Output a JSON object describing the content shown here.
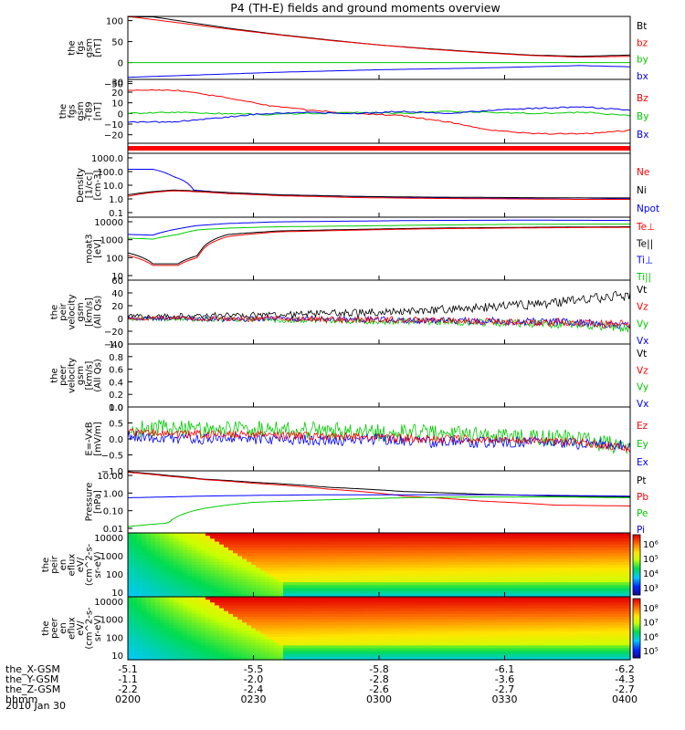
{
  "title": "P4 (TH-E) fields and ground moments overview",
  "date_label": "2010 Jan 30",
  "orbit": {
    "rows": [
      {
        "label": "the_X-GSM",
        "values": [
          "-5.1",
          "-5.5",
          "-5.8",
          "-6.1",
          "-6.2"
        ]
      },
      {
        "label": "the_Y-GSM",
        "values": [
          "-1.1",
          "-2.0",
          "-2.8",
          "-3.6",
          "-4.3"
        ]
      },
      {
        "label": "the_Z-GSM",
        "values": [
          "-2.2",
          "-2.4",
          "-2.6",
          "-2.7",
          "-2.7"
        ]
      },
      {
        "label": "hhmm",
        "values": [
          "0200",
          "0230",
          "0300",
          "0330",
          "0400"
        ]
      }
    ]
  },
  "colors": {
    "black": "#000000",
    "red": "#ff0000",
    "green": "#00cc00",
    "blue": "#0000ff"
  },
  "chart_data": [
    {
      "type": "line",
      "ylabel": [
        "the",
        "fgs",
        "gsm",
        "[nT]"
      ],
      "ylim": [
        -40,
        110
      ],
      "yticks": [
        "100",
        "50",
        "0",
        "−50"
      ],
      "legend": [
        {
          "text": "Bt",
          "color": "#000000"
        },
        {
          "text": "bz",
          "color": "#ff0000"
        },
        {
          "text": "by",
          "color": "#00cc00"
        },
        {
          "text": "bx",
          "color": "#0000ff"
        }
      ],
      "series": [
        {
          "color": "#000000",
          "values": [
            118,
            100,
            82,
            67,
            54,
            42,
            33,
            25,
            18,
            15,
            18
          ]
        },
        {
          "color": "#ff0000",
          "values": [
            110,
            95,
            80,
            66,
            53,
            42,
            32,
            24,
            17,
            13,
            15
          ]
        },
        {
          "color": "#00cc00",
          "values": [
            0,
            0,
            0,
            0,
            0,
            0,
            0,
            0,
            0,
            0,
            0
          ]
        },
        {
          "color": "#0000ff",
          "values": [
            -35,
            -31,
            -27,
            -23,
            -20,
            -17,
            -15,
            -13,
            -10,
            -7,
            -10
          ]
        }
      ]
    },
    {
      "type": "line",
      "ylabel": [
        "the",
        "fgs",
        "gsm",
        "-T89",
        "[nT]"
      ],
      "ylim": [
        -28,
        32
      ],
      "yticks": [
        "30",
        "20",
        "10",
        "0",
        "−10",
        "−20"
      ],
      "legend": [
        {
          "text": "Bz",
          "color": "#ff0000"
        },
        {
          "text": "By",
          "color": "#00cc00"
        },
        {
          "text": "Bx",
          "color": "#0000ff"
        }
      ],
      "series": [
        {
          "color": "#ff0000",
          "values": [
            22,
            22,
            16,
            8,
            3,
            0,
            -2,
            -8,
            -16,
            -19,
            -19,
            -16
          ]
        },
        {
          "color": "#00cc00",
          "values": [
            0,
            1,
            0,
            -1,
            0,
            1,
            0,
            2,
            1,
            0,
            1,
            -2
          ]
        },
        {
          "color": "#0000ff",
          "values": [
            -8,
            -8,
            -4,
            0,
            1,
            0,
            2,
            0,
            3,
            5,
            6,
            3
          ]
        }
      ]
    },
    {
      "type": "line",
      "ylabel": [
        "Density",
        "[1/cc]",
        "[cm-3]"
      ],
      "ylim": [
        0.1,
        1000
      ],
      "scale": "log",
      "yticks": [
        "1000.0",
        "100.0",
        "10.0",
        "1.0",
        "0.1"
      ],
      "legend": [
        {
          "text": "Ne",
          "color": "#ff0000"
        },
        {
          "text": "Ni",
          "color": "#000000"
        },
        {
          "text": "Npot",
          "color": "#0000ff"
        }
      ],
      "x": [
        0,
        0.05,
        0.09,
        0.13,
        0.2,
        0.3,
        0.45,
        0.6,
        0.75,
        0.9,
        1
      ],
      "series": [
        {
          "color": "#0000ff",
          "values": [
            100,
            100,
            35,
            5,
            3,
            2.5,
            2,
            1.6,
            1.5,
            1.6,
            1.4
          ]
        },
        {
          "color": "#000000",
          "values": [
            2.5,
            4,
            5,
            4.5,
            3.5,
            2.5,
            2,
            1.8,
            1.7,
            1.6,
            1.6
          ]
        },
        {
          "color": "#ff0000",
          "values": [
            2,
            3.5,
            4.5,
            4,
            3,
            2.2,
            1.7,
            1.5,
            1.4,
            1.3,
            1.3
          ]
        }
      ]
    },
    {
      "type": "line",
      "ylabel": [
        "moat3",
        "[eV]"
      ],
      "ylim": [
        10,
        10000
      ],
      "scale": "log",
      "yticks": [
        "10000",
        "1000",
        "100",
        "10"
      ],
      "legend": [
        {
          "text": "Te⊥",
          "color": "#ff0000"
        },
        {
          "text": "Te||",
          "color": "#000000"
        },
        {
          "text": "Ti⊥",
          "color": "#0000ff"
        },
        {
          "text": "Ti||",
          "color": "#00cc00"
        }
      ],
      "x": [
        0,
        0.05,
        0.1,
        0.14,
        0.2,
        0.3,
        0.45,
        0.6,
        0.8,
        1
      ],
      "series": [
        {
          "color": "#0000ff",
          "values": [
            1500,
            1400,
            2800,
            4000,
            5000,
            6000,
            6500,
            7000,
            7200,
            7000
          ]
        },
        {
          "color": "#00cc00",
          "values": [
            1000,
            900,
            1500,
            2500,
            3000,
            3500,
            3800,
            4200,
            4600,
            4700
          ]
        },
        {
          "color": "#000000",
          "values": [
            200,
            60,
            60,
            150,
            1500,
            2200,
            2600,
            3000,
            3300,
            3500
          ]
        },
        {
          "color": "#ff0000",
          "values": [
            150,
            50,
            50,
            120,
            1200,
            2000,
            2400,
            2800,
            3100,
            3300
          ]
        }
      ]
    },
    {
      "type": "line",
      "ylabel": [
        "the",
        "peir",
        "velocity",
        "gsm",
        "[km/s]",
        "(All Qs)"
      ],
      "ylim": [
        -40,
        60
      ],
      "yticks": [
        "60",
        "40",
        "20",
        "0",
        "−20",
        "−40"
      ],
      "legend": [
        {
          "text": "Vt",
          "color": "#000000"
        },
        {
          "text": "Vz",
          "color": "#ff0000"
        },
        {
          "text": "Vy",
          "color": "#00cc00"
        },
        {
          "text": "Vx",
          "color": "#0000ff"
        }
      ],
      "series": [
        {
          "color": "#000000",
          "values": [
            3,
            4,
            5,
            6,
            8,
            10,
            13,
            17,
            22,
            28,
            38
          ]
        },
        {
          "color": "#00cc00",
          "values": [
            0,
            -1,
            -2,
            -2,
            -3,
            -4,
            -5,
            -6,
            -8,
            -10,
            -15
          ]
        },
        {
          "color": "#0000ff",
          "values": [
            0,
            0,
            -1,
            0,
            -1,
            -2,
            -3,
            -4,
            -5,
            -6,
            -12
          ]
        },
        {
          "color": "#ff0000",
          "values": [
            0,
            0,
            -1,
            -1,
            -2,
            -2,
            -3,
            -4,
            -5,
            -7,
            -10
          ]
        }
      ]
    },
    {
      "type": "line",
      "ylabel": [
        "the",
        "peer",
        "velocity",
        "gsm",
        "[km/s]",
        "(All Qs)"
      ],
      "ylim": [
        0,
        1
      ],
      "yticks": [
        "1.0",
        "0.8",
        "0.6",
        "0.4",
        "0.2",
        "0.0"
      ],
      "legend": [
        {
          "text": "Vt",
          "color": "#000000"
        },
        {
          "text": "Vz",
          "color": "#ff0000"
        },
        {
          "text": "Vy",
          "color": "#00cc00"
        },
        {
          "text": "Vx",
          "color": "#0000ff"
        }
      ],
      "series": []
    },
    {
      "type": "line",
      "ylabel": [
        "E=-VxB",
        "[mV/m]"
      ],
      "ylim": [
        -1,
        1
      ],
      "yticks": [
        "1.0",
        "0.5",
        "0.0",
        "−0.5",
        "−1.0"
      ],
      "legend": [
        {
          "text": "Ez",
          "color": "#ff0000"
        },
        {
          "text": "Ey",
          "color": "#00cc00"
        },
        {
          "text": "Ex",
          "color": "#0000ff"
        }
      ],
      "series": [
        {
          "color": "#00cc00",
          "values": [
            0.3,
            0.35,
            0.3,
            0.3,
            0.25,
            0.2,
            0.2,
            0.1,
            0.05,
            0,
            -0.3
          ]
        },
        {
          "color": "#0000ff",
          "values": [
            0.1,
            0,
            0,
            0,
            -0.05,
            0,
            -0.1,
            -0.1,
            -0.1,
            -0.15,
            -0.2
          ]
        },
        {
          "color": "#ff0000",
          "values": [
            0.2,
            0.15,
            0.15,
            0.1,
            0.1,
            0.05,
            0,
            0,
            -0.05,
            -0.1,
            -0.3
          ]
        }
      ]
    },
    {
      "type": "line",
      "ylabel": [
        "Pressure",
        "[nPa]"
      ],
      "ylim": [
        0.01,
        10
      ],
      "scale": "log",
      "yticks": [
        "10.00",
        "1.00",
        "0.10",
        "0.01"
      ],
      "legend": [
        {
          "text": "Pt",
          "color": "#000000"
        },
        {
          "text": "Pb",
          "color": "#ff0000"
        },
        {
          "text": "Pe",
          "color": "#00cc00"
        },
        {
          "text": "Pi",
          "color": "#0000ff"
        }
      ],
      "x": [
        0,
        0.08,
        0.15,
        0.25,
        0.4,
        0.55,
        0.7,
        0.85,
        1
      ],
      "series": [
        {
          "color": "#000000",
          "values": [
            9,
            6,
            4,
            2.8,
            1.6,
            1.0,
            0.75,
            0.6,
            0.55
          ]
        },
        {
          "color": "#ff0000",
          "values": [
            8.5,
            5.5,
            3.8,
            2.5,
            1.3,
            0.6,
            0.35,
            0.22,
            0.2
          ]
        },
        {
          "color": "#0000ff",
          "values": [
            0.5,
            0.55,
            0.6,
            0.65,
            0.7,
            0.7,
            0.7,
            0.65,
            0.6
          ]
        },
        {
          "color": "#00cc00",
          "values": [
            0.02,
            0.03,
            0.15,
            0.3,
            0.4,
            0.5,
            0.55,
            0.55,
            0.5
          ]
        }
      ]
    },
    {
      "type": "heatmap",
      "ylabel": [
        "the",
        "peir",
        "en",
        "eflux",
        "eV/",
        "(cm^2-s-",
        "sr-eV)"
      ],
      "ylim": [
        10,
        10000
      ],
      "yticks": [
        "10000",
        "1000",
        "100",
        "10"
      ],
      "colorbar_ticks": [
        "10⁶",
        "10⁵",
        "10⁴",
        "10³"
      ]
    },
    {
      "type": "heatmap",
      "ylabel": [
        "the",
        "peer",
        "en",
        "eflux",
        "eV/",
        "(cm^2-s-",
        "sr-eV)"
      ],
      "ylim": [
        10,
        10000
      ],
      "yticks": [
        "10000",
        "1000",
        "100",
        "10"
      ],
      "colorbar_ticks": [
        "10⁸",
        "10⁷",
        "10⁶",
        "10⁵"
      ]
    }
  ]
}
